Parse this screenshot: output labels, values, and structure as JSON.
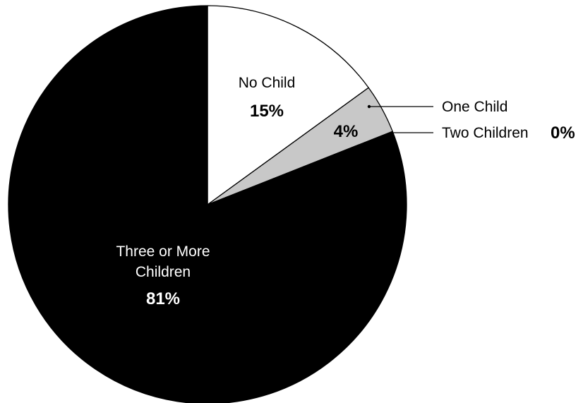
{
  "chart_data": {
    "type": "pie",
    "slices": [
      {
        "label": "No Child",
        "value": 15,
        "value_label": "15%",
        "color": "#ffffff"
      },
      {
        "label": "One Child",
        "value": 4,
        "value_label": "4%",
        "color": "#c8c8c8"
      },
      {
        "label": "Two Children",
        "value": 0,
        "value_label": "0%",
        "color": "#ffffff"
      },
      {
        "label_lines": [
          "Three or More",
          "Children"
        ],
        "value": 81,
        "value_label": "81%",
        "color": "#000000"
      }
    ]
  }
}
